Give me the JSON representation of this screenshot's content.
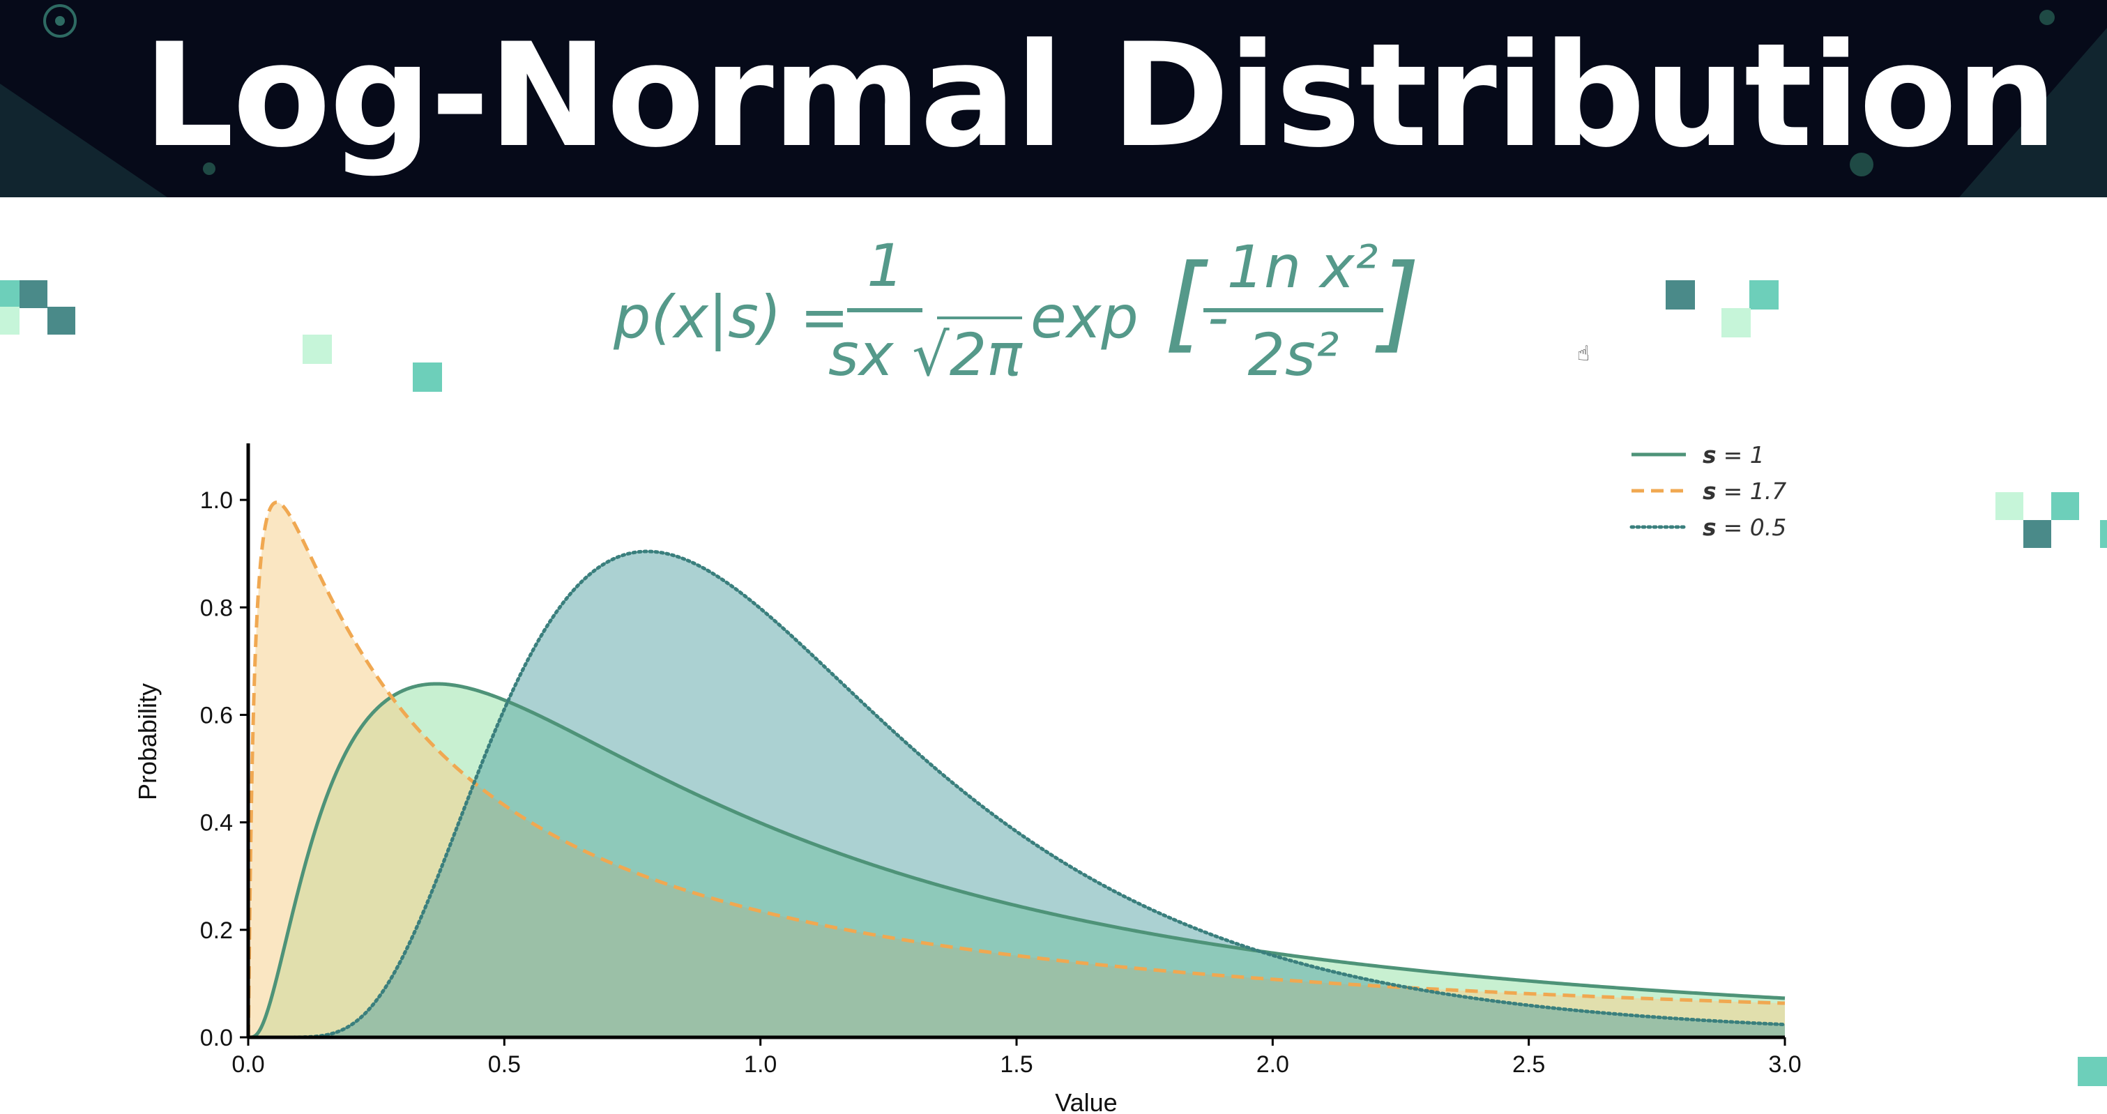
{
  "header": {
    "title": "Log-Normal Distribution"
  },
  "formula": {
    "lhs": "p(x|s) =",
    "numerator": "1",
    "denominator": "sx √2π",
    "exp_label": "exp",
    "left_bracket": "[",
    "minus": "-",
    "inner_numerator": "1n x²",
    "inner_denominator": "2s²",
    "right_bracket": "]"
  },
  "colors": {
    "banner_bg": "#060a19",
    "teal": "#55998a",
    "orange": "#f0a851",
    "dark_teal": "#3a7f7d",
    "square_light": "#c6f5d9",
    "square_mid": "#6dcfba",
    "square_dark": "#4a8a89"
  },
  "chart_data": {
    "type": "area",
    "title": "",
    "xlabel": "Value",
    "ylabel": "Probability",
    "xlim": [
      0.0,
      3.0
    ],
    "ylim": [
      0.0,
      1.1
    ],
    "x_ticks": [
      "0.0",
      "0.5",
      "1.0",
      "1.5",
      "2.0",
      "2.5",
      "3.0"
    ],
    "y_ticks": [
      "0.0",
      "0.2",
      "0.4",
      "0.6",
      "0.8",
      "1.0"
    ],
    "grid": false,
    "legend_position": "top-right",
    "series": [
      {
        "name": "s",
        "param_label": "= 1",
        "sigma": 1.0,
        "style": "solid",
        "line_color": "#4e9378",
        "fill_color": "#b8ecc4",
        "fill_opacity": 0.78
      },
      {
        "name": "s",
        "param_label": "= 1.7",
        "sigma": 1.7,
        "style": "dashed",
        "line_color": "#f0a851",
        "fill_color": "#f6d28f",
        "fill_opacity": 0.55
      },
      {
        "name": "s",
        "param_label": "= 0.5",
        "sigma": 0.5,
        "style": "dotted",
        "line_color": "#3a7f7d",
        "fill_color": "#4f9fa0",
        "fill_opacity": 0.48
      }
    ]
  }
}
